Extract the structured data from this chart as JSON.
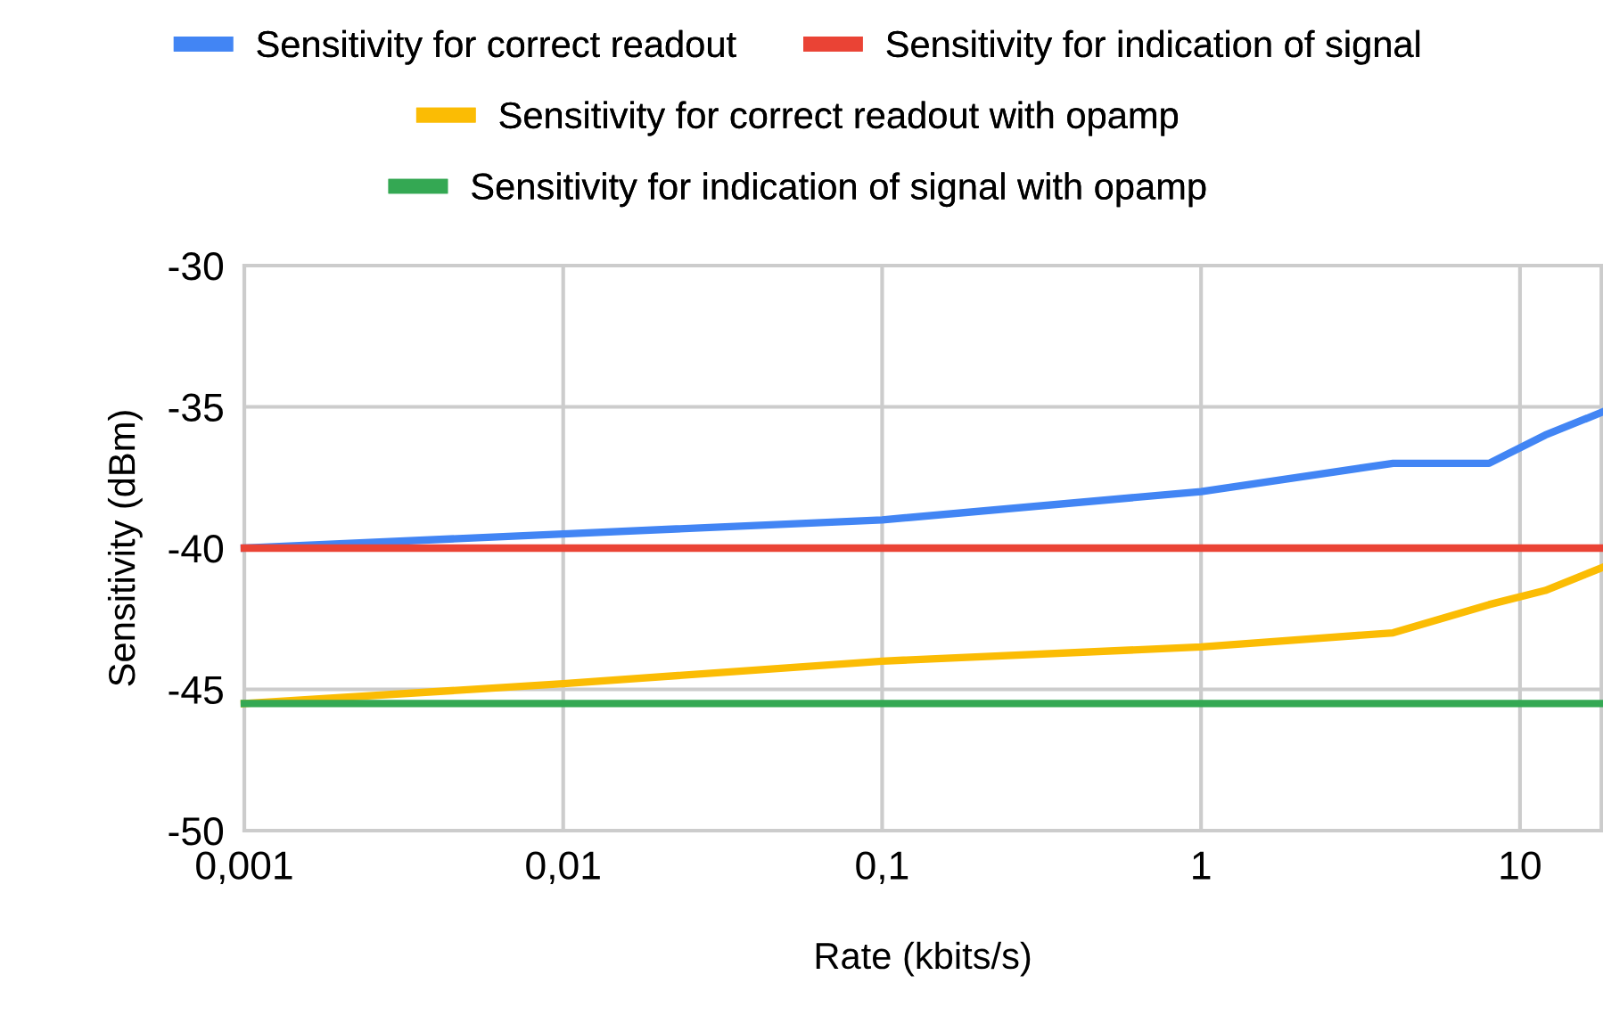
{
  "chart_data": {
    "type": "line",
    "xlabel": "Rate (kbits/s)",
    "ylabel": "Sensitivity (dBm)",
    "log": "x",
    "xlim": [
      0.001,
      18
    ],
    "xticks": [
      {
        "value": 0.001,
        "label": "0,001"
      },
      {
        "value": 0.01,
        "label": "0,01"
      },
      {
        "value": 0.1,
        "label": "0,1"
      },
      {
        "value": 1,
        "label": "1"
      },
      {
        "value": 10,
        "label": "10"
      }
    ],
    "ylim": [
      -50,
      -30
    ],
    "yticks": [
      -50,
      -45,
      -40,
      -35,
      -30
    ],
    "grid": true,
    "legend": "top",
    "line_style": "solid",
    "marker": "none",
    "series": [
      {
        "name": "Sensitivity for correct readout",
        "color": "#4285f4",
        "x": [
          0.001,
          0.01,
          0.1,
          1,
          4,
          8,
          12,
          18
        ],
        "values": [
          -40,
          -39.5,
          -39,
          -38,
          -37,
          -37,
          -36,
          -35.2
        ]
      },
      {
        "name": "Sensitivity for indication of signal",
        "color": "#ea4335",
        "x": [
          0.001,
          18
        ],
        "values": [
          -40,
          -40
        ]
      },
      {
        "name": "Sensitivity for correct readout with opamp",
        "color": "#fbbc04",
        "x": [
          0.001,
          0.01,
          0.1,
          1,
          4,
          8,
          12,
          18
        ],
        "values": [
          -45.5,
          -44.8,
          -44,
          -43.5,
          -43,
          -42,
          -41.5,
          -40.7
        ]
      },
      {
        "name": "Sensitivity for indication of signal with opamp",
        "color": "#34a853",
        "x": [
          0.001,
          18
        ],
        "values": [
          -45.5,
          -45.5
        ]
      }
    ]
  }
}
